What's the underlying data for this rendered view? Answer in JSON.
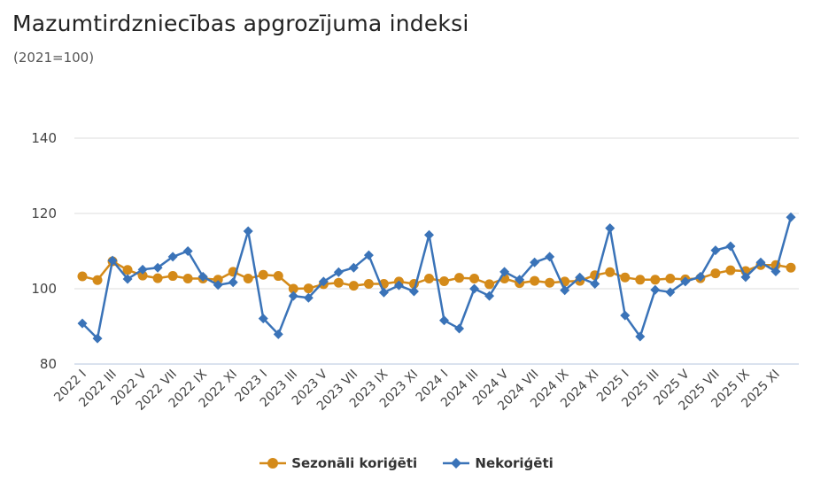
{
  "header": {
    "title": "Mazumtirdzniecības apgrozījuma indeksi",
    "subtitle": "(2021=100)"
  },
  "colors": {
    "seasonal": "#d48a19",
    "unadjusted": "#3a73b8",
    "grid": "#dcdcdc"
  },
  "chart_data": {
    "type": "line",
    "ylim": [
      80,
      140
    ],
    "yticks": [
      80,
      100,
      120,
      140
    ],
    "grid": true,
    "legend": "bottom-center",
    "categories": [
      "2022 I",
      "2022 II",
      "2022 III",
      "2022 IV",
      "2022 V",
      "2022 VI",
      "2022 VII",
      "2022 VIII",
      "2022 IX",
      "2022 X",
      "2022 XI",
      "2022 XII",
      "2023 I",
      "2023 II",
      "2023 III",
      "2023 IV",
      "2023 V",
      "2023 VI",
      "2023 VII",
      "2023 VIII",
      "2023 IX",
      "2023 X",
      "2023 XI",
      "2023 XII",
      "2024 I",
      "2024 II",
      "2024 III",
      "2024 IV",
      "2024 V",
      "2024 VI",
      "2024 VII",
      "2024 VIII",
      "2024 IX",
      "2024 X",
      "2024 XI",
      "2024 XII",
      "2025 I",
      "2025 II",
      "2025 III",
      "2025 IV",
      "2025 V",
      "2025 VI",
      "2025 VII",
      "2025 VIII",
      "2025 IX",
      "2025 X",
      "2025 XI",
      "2025 XII"
    ],
    "xtick_labels": [
      "2022 I",
      "2022 III",
      "2022 V",
      "2022 VII",
      "2022 IX",
      "2022 XI",
      "2023 I",
      "2023 III",
      "2023 V",
      "2023 VII",
      "2023 IX",
      "2023 XI",
      "2024 I",
      "2024 III",
      "2024 V",
      "2024 VII",
      "2024 IX",
      "2024 XI",
      "2025 I",
      "2025 III",
      "2025 V",
      "2025 VII",
      "2025 IX",
      "2025 XI"
    ],
    "series": [
      {
        "name": "Sezonāli koriģēti",
        "marker": "circle",
        "values": [
          103.3,
          102.3,
          107.3,
          105.0,
          103.5,
          102.8,
          103.4,
          102.7,
          102.7,
          102.4,
          104.5,
          102.7,
          103.7,
          103.4,
          100.0,
          100.1,
          101.2,
          101.6,
          100.8,
          101.3,
          101.3,
          101.9,
          101.3,
          102.7,
          102.0,
          102.9,
          102.7,
          101.2,
          102.7,
          101.5,
          102.1,
          101.6,
          101.9,
          102.1,
          103.6,
          104.4,
          103.0,
          102.4,
          102.4,
          102.7,
          102.5,
          102.8,
          104.1,
          104.9,
          104.7,
          106.3,
          106.3,
          105.6
        ]
      },
      {
        "name": "Nekoriģēti",
        "marker": "diamond",
        "values": [
          90.8,
          86.8,
          107.5,
          102.6,
          105.1,
          105.6,
          108.5,
          110.0,
          103.2,
          101.0,
          101.7,
          115.3,
          92.1,
          87.9,
          98.1,
          97.6,
          101.9,
          104.4,
          105.6,
          108.9,
          99.0,
          100.9,
          99.3,
          114.3,
          91.6,
          89.4,
          100.0,
          98.1,
          104.5,
          102.4,
          107.0,
          108.5,
          99.6,
          103.0,
          101.3,
          116.1,
          92.9,
          87.3,
          99.7,
          99.1,
          101.9,
          103.2,
          110.2,
          111.3,
          103.1,
          107.0,
          104.6,
          119.0
        ]
      }
    ]
  }
}
